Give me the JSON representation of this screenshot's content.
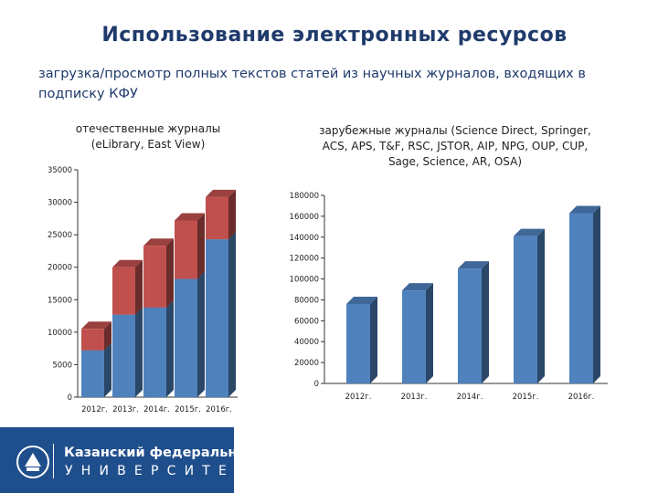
{
  "title": "Использование  электронных ресурсов",
  "subtitle": "загрузка/просмотр полных текстов статей из научных журналов, входящих в подписку КФУ",
  "colors": {
    "blue": "#4f81bd",
    "red": "#c0504d",
    "title": "#1f3a6b",
    "logo_bg": "#1f4e8c"
  },
  "logo": {
    "line1": "Казанский федеральный",
    "line2": "УНИВЕРСИТЕТ",
    "emblem": "kfu-emblem-icon"
  },
  "chart_data": [
    {
      "type": "bar",
      "stacked": true,
      "title": "отечественные журналы (eLibrary, East View)",
      "categories": [
        "2012г.",
        "2013г.",
        "2014г.",
        "2015г.",
        "2016г."
      ],
      "series": [
        {
          "values": [
            7200,
            12700,
            13800,
            18200,
            24300
          ],
          "color": "#4f81bd"
        },
        {
          "values": [
            3300,
            7300,
            9500,
            9000,
            6500
          ],
          "color": "#c0504d"
        }
      ],
      "ylim": [
        0,
        35000
      ],
      "yticks": [
        0,
        5000,
        10000,
        15000,
        20000,
        25000,
        30000,
        35000
      ],
      "xlabel": "",
      "ylabel": ""
    },
    {
      "type": "bar",
      "title": "зарубежные журналы (Science Direct, Springer, ACS, APS, T&F, RSC, JSTOR, AIP, NPG, OUP, CUP, Sage, Science, AR, OSA)",
      "categories": [
        "2012г.",
        "2013г.",
        "2014г.",
        "2015г.",
        "2016г."
      ],
      "series": [
        {
          "values": [
            76000,
            89000,
            110000,
            141000,
            163000
          ],
          "color": "#4f81bd"
        }
      ],
      "ylim": [
        0,
        180000
      ],
      "yticks": [
        0,
        20000,
        40000,
        60000,
        80000,
        100000,
        120000,
        140000,
        160000,
        180000
      ],
      "xlabel": "",
      "ylabel": ""
    }
  ]
}
